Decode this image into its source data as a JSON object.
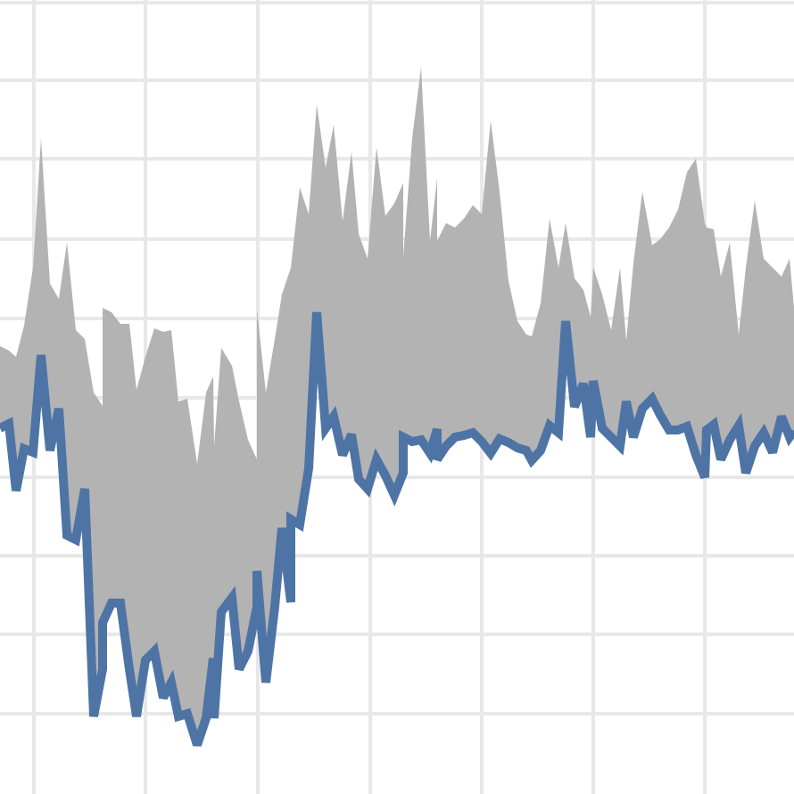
{
  "chart_data": {
    "type": "range-area",
    "x": [
      0,
      10,
      18,
      27,
      37,
      46,
      56,
      66,
      75,
      85,
      95,
      105,
      115,
      115,
      125,
      135,
      145,
      153,
      163,
      173,
      183,
      192,
      200,
      210,
      221,
      231,
      239,
      240,
      248,
      260,
      268,
      278,
      288,
      288,
      298,
      308,
      316,
      326,
      326,
      336,
      346,
      355,
      365,
      374,
      384,
      394,
      402,
      412,
      422,
      432,
      442,
      452,
      452,
      462,
      472,
      482,
      490,
      490,
      500,
      510,
      520,
      530,
      540,
      550,
      560,
      570,
      580,
      590,
      596,
      606,
      616,
      626,
      634,
      644,
      654,
      662,
      665,
      675,
      685,
      695,
      702,
      710,
      720,
      731,
      740,
      750,
      760,
      770,
      780,
      790,
      792,
      800,
      808,
      818,
      828,
      836,
      846,
      856,
      866,
      876,
      885,
      890
    ],
    "low": [
      410,
      415,
      340,
      387,
      383,
      492,
      385,
      432,
      290,
      285,
      342,
      87,
      140,
      192,
      214,
      214,
      140,
      87,
      150,
      160,
      108,
      125,
      87,
      90,
      55,
      85,
      152,
      85,
      204,
      220,
      140,
      160,
      210,
      250,
      125,
      210,
      298,
      215,
      308,
      302,
      365,
      540,
      410,
      423,
      380,
      403,
      353,
      342,
      375,
      357,
      335,
      360,
      400,
      395,
      397,
      382,
      409,
      375,
      390,
      400,
      402,
      405,
      395,
      382,
      398,
      394,
      388,
      385,
      374,
      385,
      413,
      405,
      530,
      434,
      460,
      400,
      463,
      410,
      400,
      390,
      440,
      400,
      432,
      443,
      425,
      408,
      408,
      412,
      380,
      355,
      408,
      414,
      375,
      397,
      413,
      360,
      390,
      405,
      383,
      423,
      400,
      407
    ],
    "high": [
      502,
      497,
      490,
      525,
      590,
      735,
      572,
      555,
      618,
      520,
      510,
      450,
      435,
      545,
      540,
      527,
      527,
      453,
      490,
      522,
      518,
      520,
      440,
      443,
      370,
      450,
      468,
      390,
      500,
      480,
      440,
      397,
      375,
      543,
      450,
      510,
      560,
      590,
      590,
      680,
      650,
      773,
      702,
      750,
      642,
      720,
      628,
      600,
      725,
      648,
      662,
      685,
      602,
      735,
      815,
      620,
      690,
      620,
      640,
      635,
      645,
      660,
      650,
      755,
      675,
      575,
      530,
      515,
      513,
      550,
      645,
      590,
      640,
      578,
      565,
      535,
      590,
      560,
      520,
      590,
      508,
      595,
      675,
      615,
      622,
      635,
      655,
      697,
      712,
      640,
      635,
      633,
      580,
      618,
      515,
      590,
      665,
      600,
      590,
      580,
      600,
      545
    ],
    "line_color": "#4e74a6",
    "area_color": "#b3b3b3",
    "xlim": [
      0,
      890
    ],
    "ylim": [
      0,
      890
    ],
    "xticks": [
      38,
      163,
      289,
      415,
      540,
      665,
      790
    ],
    "yticks": [
      90,
      179,
      267,
      355,
      444,
      533,
      622,
      712,
      800,
      887
    ],
    "grid": true
  }
}
